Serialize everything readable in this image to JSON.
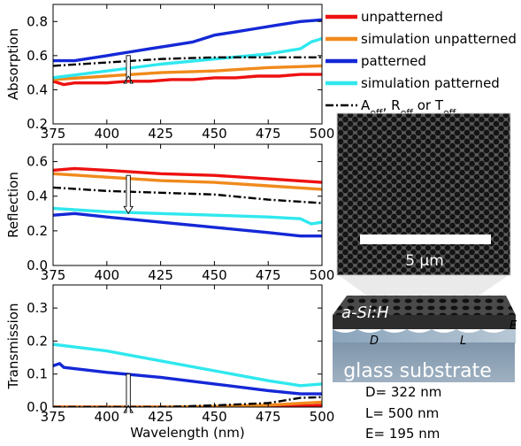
{
  "chart_data": [
    {
      "type": "line",
      "ylabel": "Absorption",
      "xlim": [
        375,
        500
      ],
      "ylim": [
        0.2,
        0.9
      ],
      "xticks": [
        375,
        400,
        425,
        450,
        475,
        500
      ],
      "yticks": [
        0.2,
        0.4,
        0.6,
        0.8
      ],
      "ytick_labels": [
        "0.2",
        "0.4",
        "0.6",
        "0.8"
      ],
      "series": [
        {
          "name": "unpatterned",
          "color": "#ee1111",
          "x": [
            375,
            380,
            385,
            390,
            400,
            410,
            420,
            430,
            440,
            450,
            460,
            470,
            480,
            490,
            500
          ],
          "y": [
            0.45,
            0.43,
            0.44,
            0.44,
            0.44,
            0.45,
            0.45,
            0.46,
            0.46,
            0.47,
            0.47,
            0.48,
            0.48,
            0.49,
            0.49
          ]
        },
        {
          "name": "simulation unpatterned",
          "color": "#f08a1c",
          "x": [
            375,
            400,
            425,
            450,
            475,
            500
          ],
          "y": [
            0.46,
            0.48,
            0.5,
            0.51,
            0.53,
            0.54
          ]
        },
        {
          "name": "patterned",
          "color": "#1428d6",
          "x": [
            375,
            385,
            390,
            400,
            410,
            420,
            430,
            440,
            445,
            450,
            460,
            470,
            480,
            490,
            500
          ],
          "y": [
            0.57,
            0.57,
            0.58,
            0.6,
            0.62,
            0.64,
            0.66,
            0.68,
            0.7,
            0.72,
            0.74,
            0.76,
            0.78,
            0.8,
            0.81
          ]
        },
        {
          "name": "simulation patterned",
          "color": "#2fe8ee",
          "x": [
            375,
            400,
            425,
            450,
            475,
            490,
            495,
            500
          ],
          "y": [
            0.47,
            0.51,
            0.55,
            0.58,
            0.61,
            0.64,
            0.68,
            0.7
          ]
        },
        {
          "name": "A_eff, R_eff or T_eff",
          "color": "#000000",
          "dash": true,
          "x": [
            375,
            400,
            425,
            450,
            475,
            500
          ],
          "y": [
            0.54,
            0.56,
            0.58,
            0.59,
            0.59,
            0.59
          ]
        }
      ],
      "arrow": {
        "x": 410,
        "y_top": 0.6,
        "y_bottom": 0.48
      }
    },
    {
      "type": "line",
      "ylabel": "Reflection",
      "xlim": [
        375,
        500
      ],
      "ylim": [
        0.0,
        0.7
      ],
      "xticks": [
        375,
        400,
        425,
        450,
        475,
        500
      ],
      "yticks": [
        0.0,
        0.2,
        0.4,
        0.6
      ],
      "ytick_labels": [
        "0.0",
        "0.2",
        "0.4",
        "0.6"
      ],
      "series": [
        {
          "name": "unpatterned",
          "color": "#ee1111",
          "x": [
            375,
            385,
            400,
            425,
            450,
            475,
            500
          ],
          "y": [
            0.55,
            0.56,
            0.55,
            0.53,
            0.52,
            0.5,
            0.48
          ]
        },
        {
          "name": "simulation unpatterned",
          "color": "#f08a1c",
          "x": [
            375,
            400,
            425,
            450,
            475,
            500
          ],
          "y": [
            0.53,
            0.51,
            0.49,
            0.48,
            0.46,
            0.44
          ]
        },
        {
          "name": "patterned",
          "color": "#1428d6",
          "x": [
            375,
            385,
            400,
            425,
            450,
            475,
            490,
            500
          ],
          "y": [
            0.29,
            0.3,
            0.28,
            0.25,
            0.22,
            0.19,
            0.17,
            0.17
          ]
        },
        {
          "name": "simulation patterned",
          "color": "#2fe8ee",
          "x": [
            375,
            400,
            425,
            450,
            475,
            490,
            495,
            500
          ],
          "y": [
            0.33,
            0.31,
            0.3,
            0.29,
            0.28,
            0.27,
            0.24,
            0.25
          ]
        },
        {
          "name": "A_eff, R_eff or T_eff",
          "color": "#000000",
          "dash": true,
          "x": [
            375,
            400,
            425,
            450,
            475,
            500
          ],
          "y": [
            0.45,
            0.43,
            0.42,
            0.41,
            0.38,
            0.36
          ]
        }
      ],
      "arrow": {
        "x": 410,
        "y_top": 0.52,
        "y_bottom": 0.3
      }
    },
    {
      "type": "line",
      "ylabel": "Transmission",
      "xlabel": "Wavelength (nm)",
      "xlim": [
        375,
        500
      ],
      "ylim": [
        0.0,
        0.37
      ],
      "xticks": [
        375,
        400,
        425,
        450,
        475,
        500
      ],
      "yticks": [
        0.0,
        0.1,
        0.2,
        0.3
      ],
      "ytick_labels": [
        "0.0",
        "0.1",
        "0.2",
        "0.3"
      ],
      "series": [
        {
          "name": "unpatterned",
          "color": "#ee1111",
          "x": [
            375,
            400,
            425,
            450,
            475,
            500
          ],
          "y": [
            0.0,
            0.0,
            0.0,
            0.0,
            0.0,
            0.005
          ]
        },
        {
          "name": "simulation unpatterned",
          "color": "#f08a1c",
          "x": [
            375,
            400,
            425,
            450,
            475,
            500
          ],
          "y": [
            0.0,
            0.0,
            0.0,
            0.002,
            0.006,
            0.015
          ]
        },
        {
          "name": "patterned",
          "color": "#1428d6",
          "x": [
            375,
            378,
            380,
            400,
            425,
            450,
            475,
            490,
            500
          ],
          "y": [
            0.125,
            0.132,
            0.12,
            0.105,
            0.09,
            0.07,
            0.05,
            0.04,
            0.04
          ]
        },
        {
          "name": "simulation patterned",
          "color": "#2fe8ee",
          "x": [
            375,
            400,
            425,
            450,
            475,
            490,
            500
          ],
          "y": [
            0.19,
            0.17,
            0.14,
            0.11,
            0.08,
            0.065,
            0.07
          ]
        },
        {
          "name": "A_eff, R_eff or T_eff",
          "color": "#000000",
          "dash": true,
          "x": [
            375,
            400,
            425,
            450,
            475,
            490,
            500
          ],
          "y": [
            0.0,
            0.0,
            0.0,
            0.005,
            0.012,
            0.028,
            0.03
          ]
        }
      ],
      "arrow": {
        "x": 410,
        "y_top": 0.1,
        "y_bottom": 0.005
      }
    }
  ],
  "legend": [
    {
      "label": "unpatterned",
      "color": "#ee1111",
      "dash": false
    },
    {
      "label": "simulation unpatterned",
      "color": "#f08a1c",
      "dash": false
    },
    {
      "label": "patterned",
      "color": "#1428d6",
      "dash": false
    },
    {
      "label": "simulation patterned",
      "color": "#2fe8ee",
      "dash": false
    },
    {
      "color": "#000000",
      "dash": true,
      "parts": [
        {
          "t": "A",
          "sub": "eff"
        },
        {
          "t": ", R",
          "sub": "eff"
        },
        {
          "t": " or T",
          "sub": "eff"
        }
      ]
    }
  ],
  "inset": {
    "scalebar_label": "5  µm",
    "layer_label": "a-Si:H",
    "d_label": "D",
    "l_label": "L",
    "e_label": "E",
    "substrate_label": "glass substrate",
    "params": [
      "D= 322 nm",
      "L= 500 nm",
      "E= 195 nm"
    ]
  }
}
